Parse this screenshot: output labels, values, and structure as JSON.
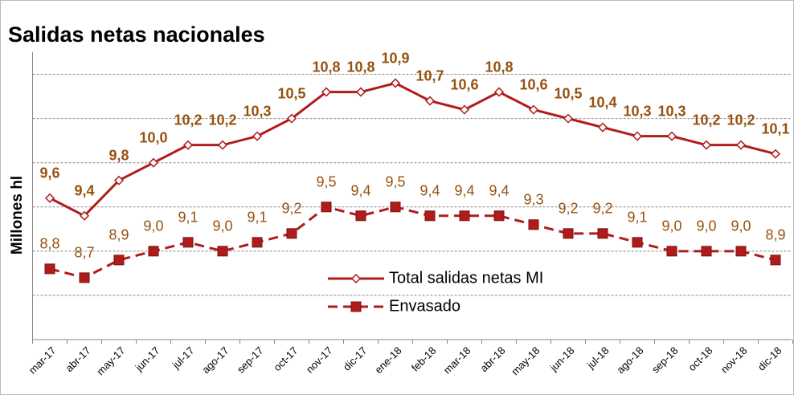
{
  "chart_data": {
    "type": "line",
    "title": "Salidas netas nacionales",
    "y_label": "Millones hl",
    "categories": [
      "mar-17",
      "abr-17",
      "may-17",
      "jun-17",
      "jul-17",
      "ago-17",
      "sep-17",
      "oct-17",
      "nov-17",
      "dic-17",
      "ene-18",
      "feb-18",
      "mar-18",
      "abr-18",
      "may-18",
      "jun-18",
      "jul-18",
      "ago-18",
      "sep-18",
      "oct-18",
      "nov-18",
      "dic-18"
    ],
    "series": [
      {
        "name": "Total salidas netas MI",
        "color": "#b01c1c",
        "dash": false,
        "marker": "diamond",
        "values": [
          9.6,
          9.4,
          9.8,
          10.0,
          10.2,
          10.2,
          10.3,
          10.5,
          10.8,
          10.8,
          10.9,
          10.7,
          10.6,
          10.8,
          10.6,
          10.5,
          10.4,
          10.3,
          10.3,
          10.2,
          10.2,
          10.1
        ],
        "value_labels": [
          "9,6",
          "9,4",
          "9,8",
          "10,0",
          "10,2",
          "10,2",
          "10,3",
          "10,5",
          "10,8",
          "10,8",
          "10,9",
          "10,7",
          "10,6",
          "10,8",
          "10,6",
          "10,5",
          "10,4",
          "10,3",
          "10,3",
          "10,2",
          "10,2",
          "10,1"
        ]
      },
      {
        "name": "Envasado",
        "color": "#b01c1c",
        "dash": true,
        "marker": "square",
        "values": [
          8.8,
          8.7,
          8.9,
          9.0,
          9.1,
          9.0,
          9.1,
          9.2,
          9.5,
          9.4,
          9.5,
          9.4,
          9.4,
          9.4,
          9.3,
          9.2,
          9.2,
          9.1,
          9.0,
          9.0,
          9.0,
          8.9
        ],
        "value_labels": [
          "8,8",
          "8,7",
          "8,9",
          "9,0",
          "9,1",
          "9,0",
          "9,1",
          "9,2",
          "9,5",
          "9,4",
          "9,5",
          "9,4",
          "9,4",
          "9,4",
          "9,3",
          "9,2",
          "9,2",
          "9,1",
          "9,0",
          "9,0",
          "9,0",
          "8,9"
        ]
      }
    ],
    "label_color": "#97510f",
    "ylim": [
      8,
      11.25
    ],
    "yticks": [
      8.5,
      9,
      9.5,
      10,
      10.5,
      11
    ],
    "grid": true
  }
}
